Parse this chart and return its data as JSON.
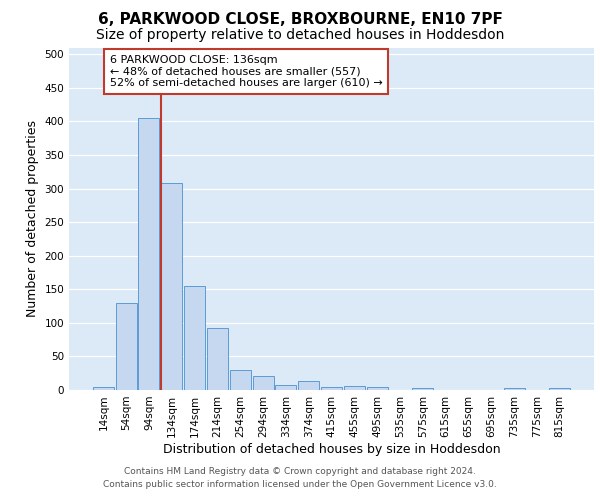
{
  "title": "6, PARKWOOD CLOSE, BROXBOURNE, EN10 7PF",
  "subtitle": "Size of property relative to detached houses in Hoddesdon",
  "xlabel": "Distribution of detached houses by size in Hoddesdon",
  "ylabel": "Number of detached properties",
  "footer_line1": "Contains HM Land Registry data © Crown copyright and database right 2024.",
  "footer_line2": "Contains public sector information licensed under the Open Government Licence v3.0.",
  "categories": [
    "14sqm",
    "54sqm",
    "94sqm",
    "134sqm",
    "174sqm",
    "214sqm",
    "254sqm",
    "294sqm",
    "334sqm",
    "374sqm",
    "415sqm",
    "455sqm",
    "495sqm",
    "535sqm",
    "575sqm",
    "615sqm",
    "655sqm",
    "695sqm",
    "735sqm",
    "775sqm",
    "815sqm"
  ],
  "bar_values": [
    5,
    130,
    405,
    308,
    155,
    92,
    30,
    21,
    8,
    13,
    5,
    6,
    4,
    0,
    3,
    0,
    0,
    0,
    3,
    0,
    3
  ],
  "bar_color": "#c5d8f0",
  "bar_edge_color": "#5b9bd5",
  "vline_color": "#c0392b",
  "vline_index": 3,
  "annotation_line1": "6 PARKWOOD CLOSE: 136sqm",
  "annotation_line2": "← 48% of detached houses are smaller (557)",
  "annotation_line3": "52% of semi-detached houses are larger (610) →",
  "annotation_box_facecolor": "#ffffff",
  "annotation_box_edgecolor": "#c0392b",
  "ylim": [
    0,
    510
  ],
  "yticks": [
    0,
    50,
    100,
    150,
    200,
    250,
    300,
    350,
    400,
    450,
    500
  ],
  "bg_color": "#dce9f7",
  "grid_color": "#ffffff",
  "fig_bg_color": "#ffffff",
  "title_fontsize": 11,
  "subtitle_fontsize": 10,
  "xlabel_fontsize": 9,
  "ylabel_fontsize": 9,
  "tick_fontsize": 7.5,
  "footer_fontsize": 6.5,
  "ann_fontsize": 8
}
